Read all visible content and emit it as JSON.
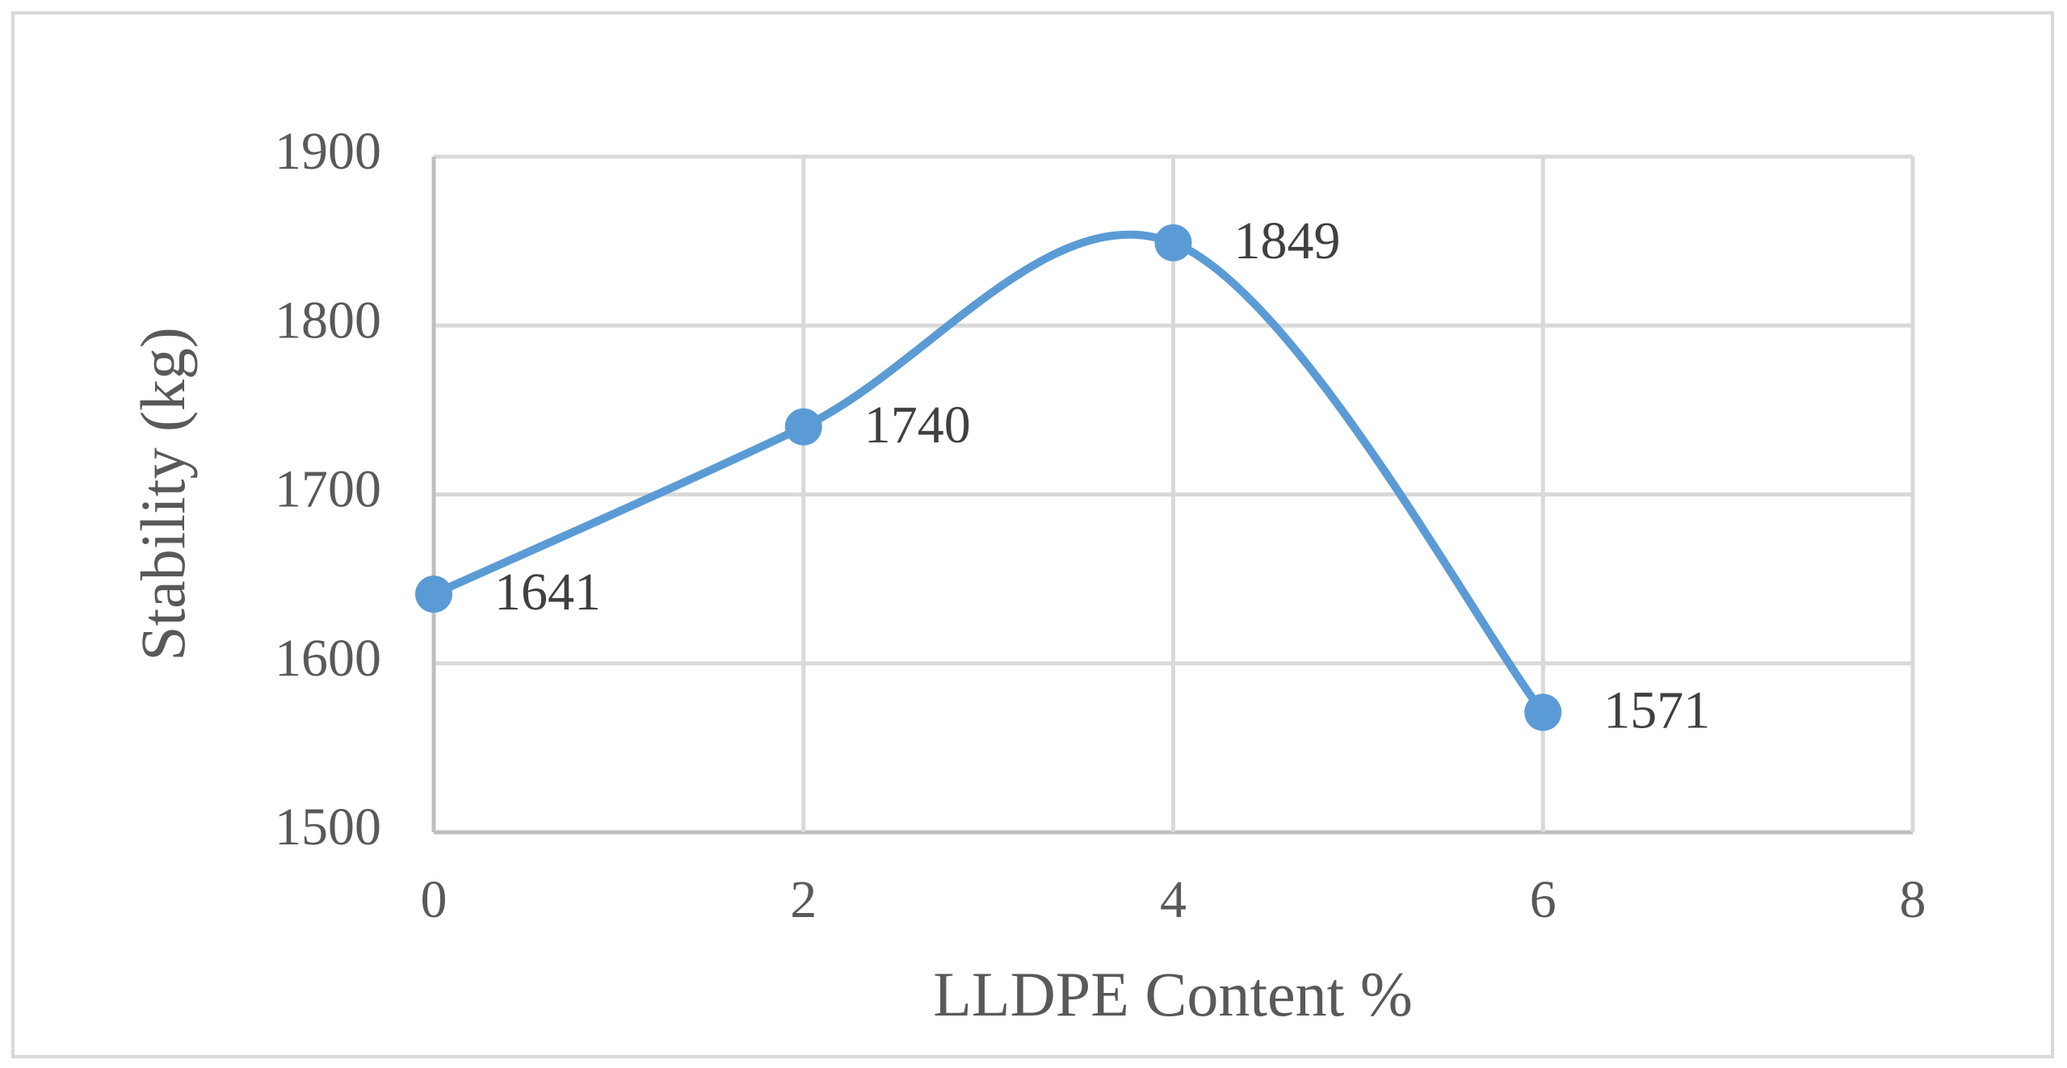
{
  "chart_data": {
    "type": "line",
    "smooth": true,
    "x_label": "LLDPE Content %",
    "y_label": "Stability (kg)",
    "x": [
      0,
      2,
      4,
      6
    ],
    "series": [
      {
        "color": "#5b9bd5",
        "values": [
          1641,
          1740,
          1849,
          1571
        ]
      }
    ],
    "xlim": [
      0,
      8
    ],
    "xticks": [
      0,
      2,
      4,
      6,
      8
    ],
    "ylim": [
      1500,
      1900
    ],
    "yticks": [
      1500,
      1600,
      1700,
      1800,
      1900
    ],
    "grid": true
  }
}
